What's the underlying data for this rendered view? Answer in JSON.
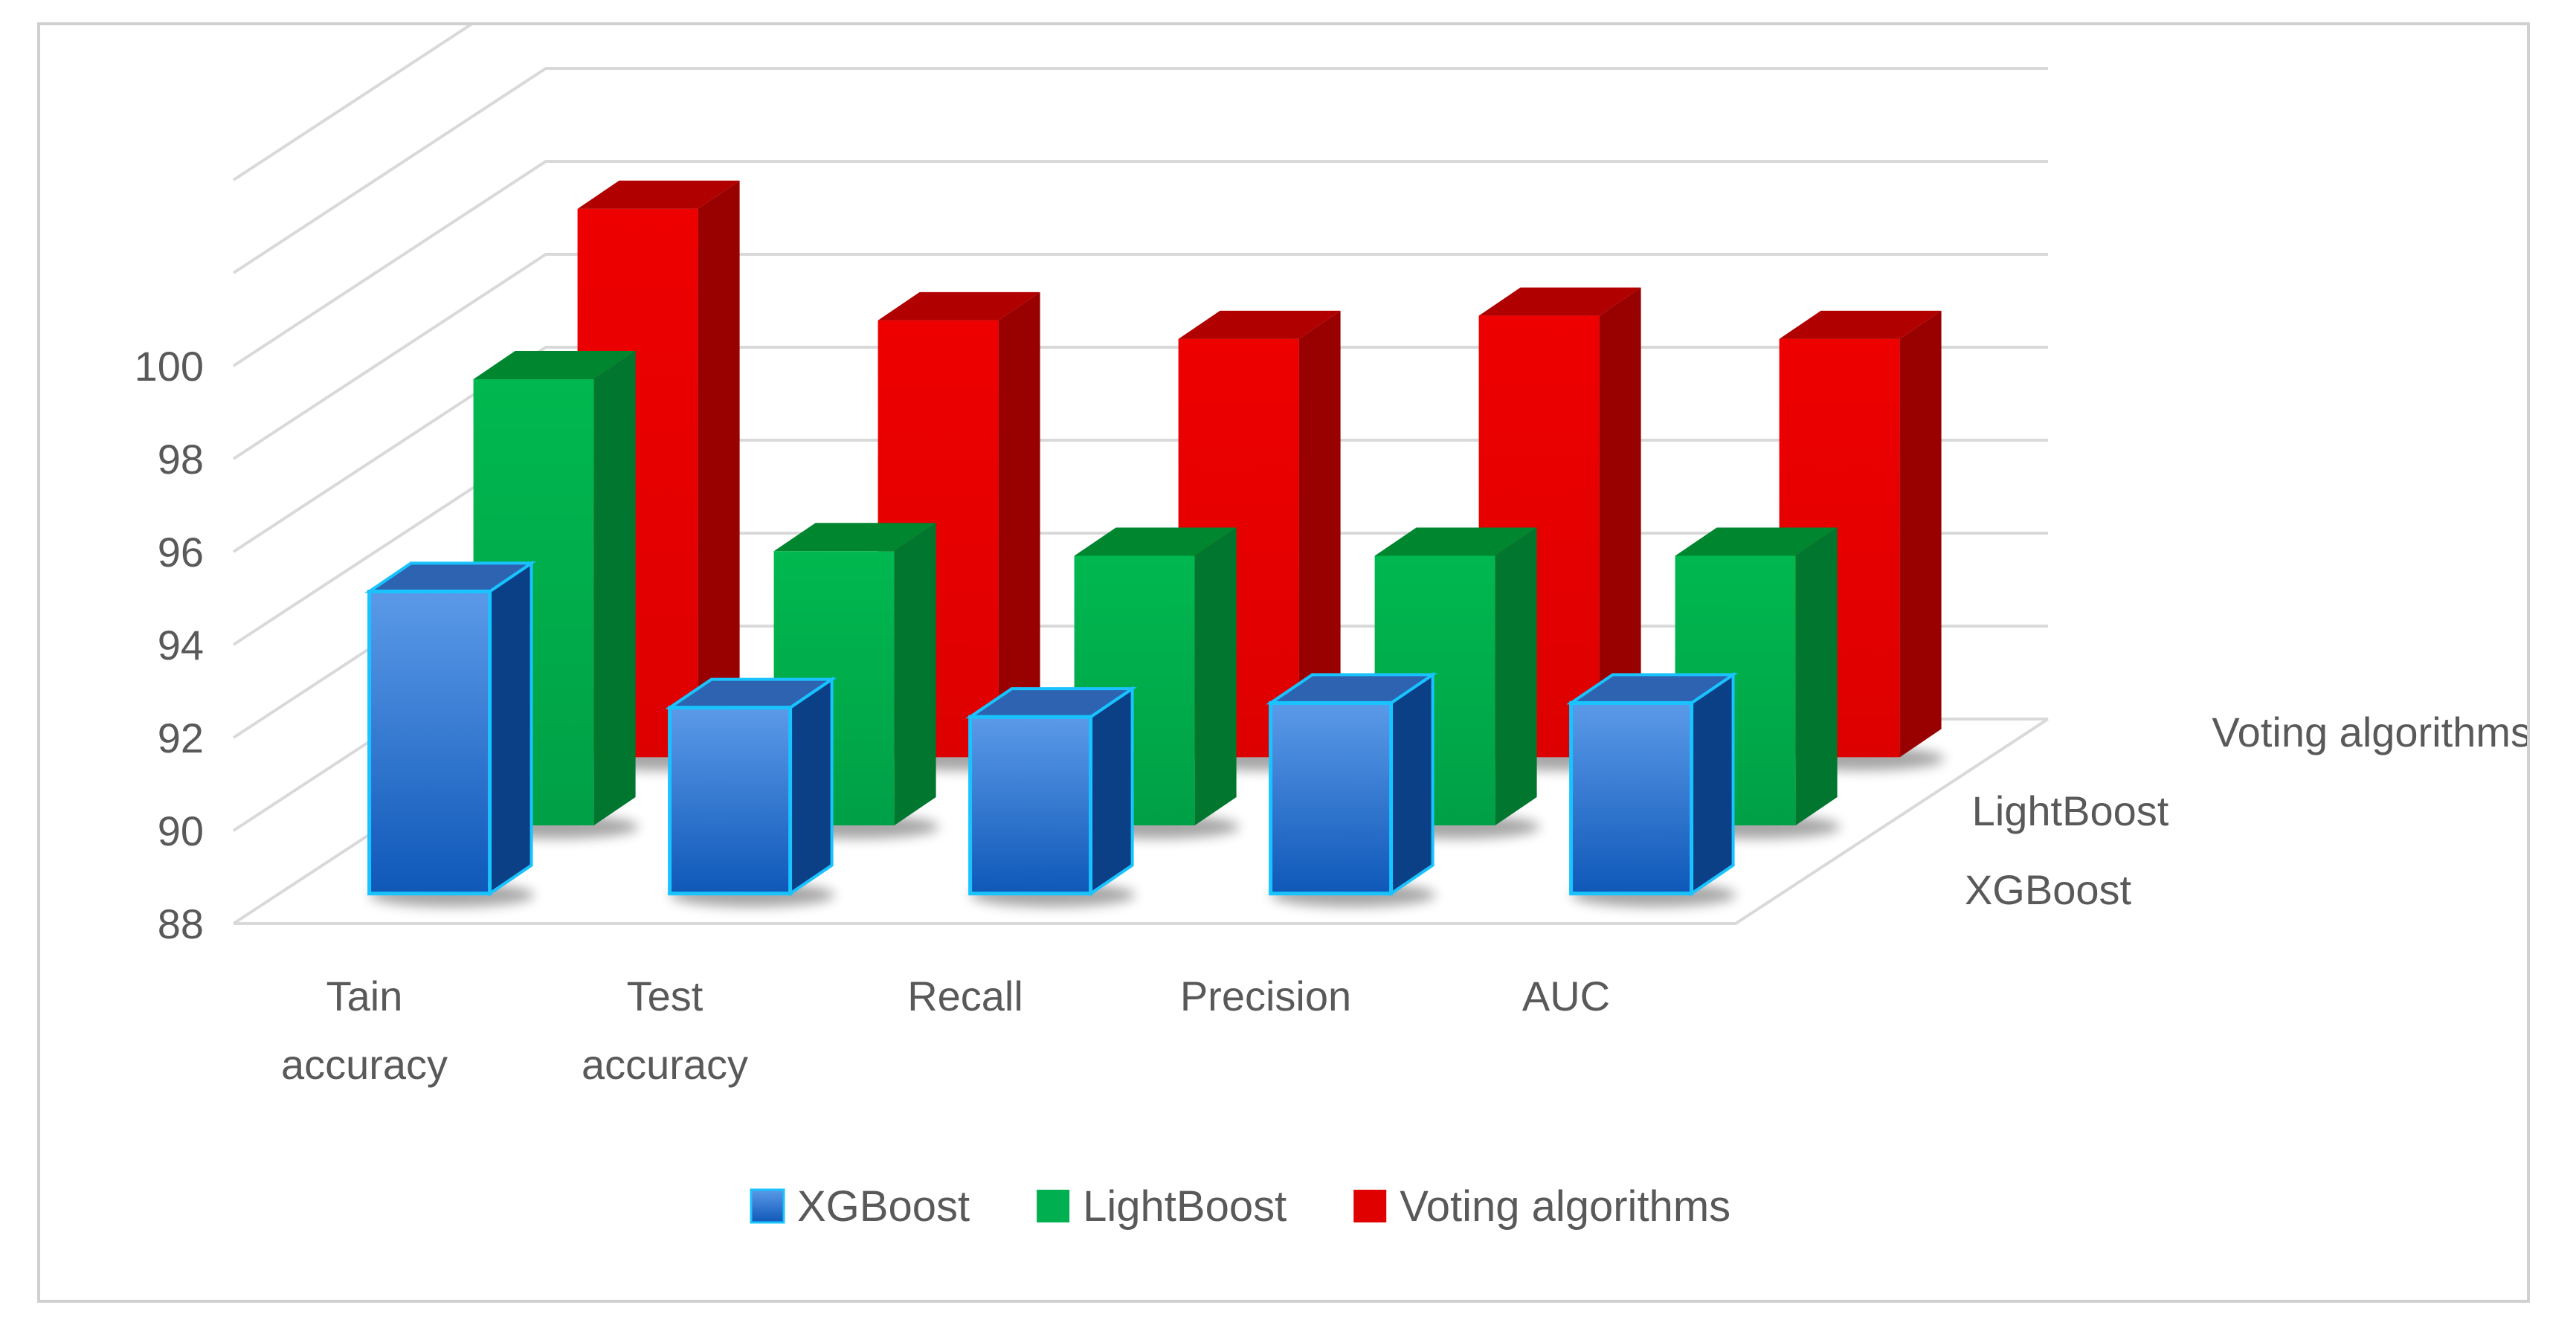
{
  "chart_data": {
    "type": "bar",
    "subtype": "3d-column",
    "title": "",
    "xlabel": "",
    "ylabel": "",
    "categories": [
      [
        "Tain",
        "accuracy"
      ],
      [
        "Test",
        "accuracy"
      ],
      [
        "Recall"
      ],
      [
        "Precision"
      ],
      [
        "AUC"
      ]
    ],
    "yticks": [
      88,
      90,
      92,
      94,
      96,
      98,
      100
    ],
    "ylim": [
      88,
      100
    ],
    "grid": true,
    "legend": "bottom",
    "series": [
      {
        "name": "XGBoost",
        "color": "#1f6fd1",
        "values": [
          94.5,
          92.0,
          91.8,
          92.1,
          92.1
        ]
      },
      {
        "name": "LightBoost",
        "color": "#00b050",
        "values": [
          97.6,
          93.9,
          93.8,
          93.8,
          93.8
        ]
      },
      {
        "name": "Voting algorithms",
        "color": "#e00000",
        "values": [
          99.8,
          97.4,
          97.0,
          97.5,
          97.0
        ]
      }
    ]
  }
}
